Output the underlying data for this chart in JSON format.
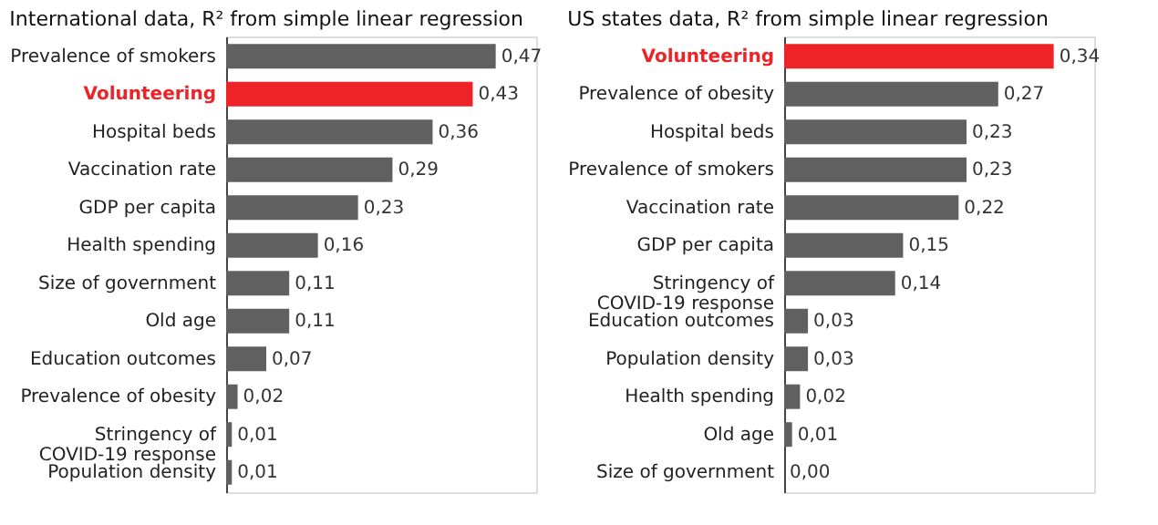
{
  "chart_data": [
    {
      "type": "bar",
      "orientation": "horizontal",
      "title": "International data, R² from simple linear regression",
      "categories": [
        "Prevalence of smokers",
        "Volunteering",
        "Hospital beds",
        "Vaccination rate",
        "GDP per capita",
        "Health spending",
        "Size of government",
        "Old age",
        "Education outcomes",
        "Prevalence of obesity",
        "Stringency of COVID-19 response",
        "Population density"
      ],
      "values": [
        0.47,
        0.43,
        0.36,
        0.29,
        0.23,
        0.16,
        0.11,
        0.11,
        0.07,
        0.02,
        0.01,
        0.01
      ],
      "value_labels": [
        "0,47",
        "0,43",
        "0,36",
        "0,29",
        "0,23",
        "0,16",
        "0,11",
        "0,11",
        "0,07",
        "0,02",
        "0,01",
        "0,01"
      ],
      "colors": [
        "#606060",
        "#ee2328",
        "#606060",
        "#606060",
        "#606060",
        "#606060",
        "#606060",
        "#606060",
        "#606060",
        "#606060",
        "#606060",
        "#606060"
      ],
      "tick_labels": "y",
      "grid": false
    },
    {
      "type": "bar",
      "orientation": "horizontal",
      "title": "US states data, R² from simple linear regression",
      "categories": [
        "Volunteering",
        "Prevalence of obesity",
        "Hospital beds",
        "Prevalence of smokers",
        "Vaccination rate",
        "GDP per capita",
        "Stringency of COVID-19 response",
        "Education outcomes",
        "Population density",
        "Health spending",
        "Old age",
        "Size of government"
      ],
      "values": [
        0.34,
        0.27,
        0.23,
        0.23,
        0.22,
        0.15,
        0.14,
        0.03,
        0.03,
        0.02,
        0.01,
        0.0
      ],
      "value_labels": [
        "0,34",
        "0,27",
        "0,23",
        "0,23",
        "0,22",
        "0,15",
        "0,14",
        "0,03",
        "0,03",
        "0,02",
        "0,01",
        "0,00"
      ],
      "colors": [
        "#ee2328",
        "#606060",
        "#606060",
        "#606060",
        "#606060",
        "#606060",
        "#606060",
        "#606060",
        "#606060",
        "#606060",
        "#606060",
        "#606060"
      ],
      "tick_labels": "y",
      "grid": false
    }
  ]
}
